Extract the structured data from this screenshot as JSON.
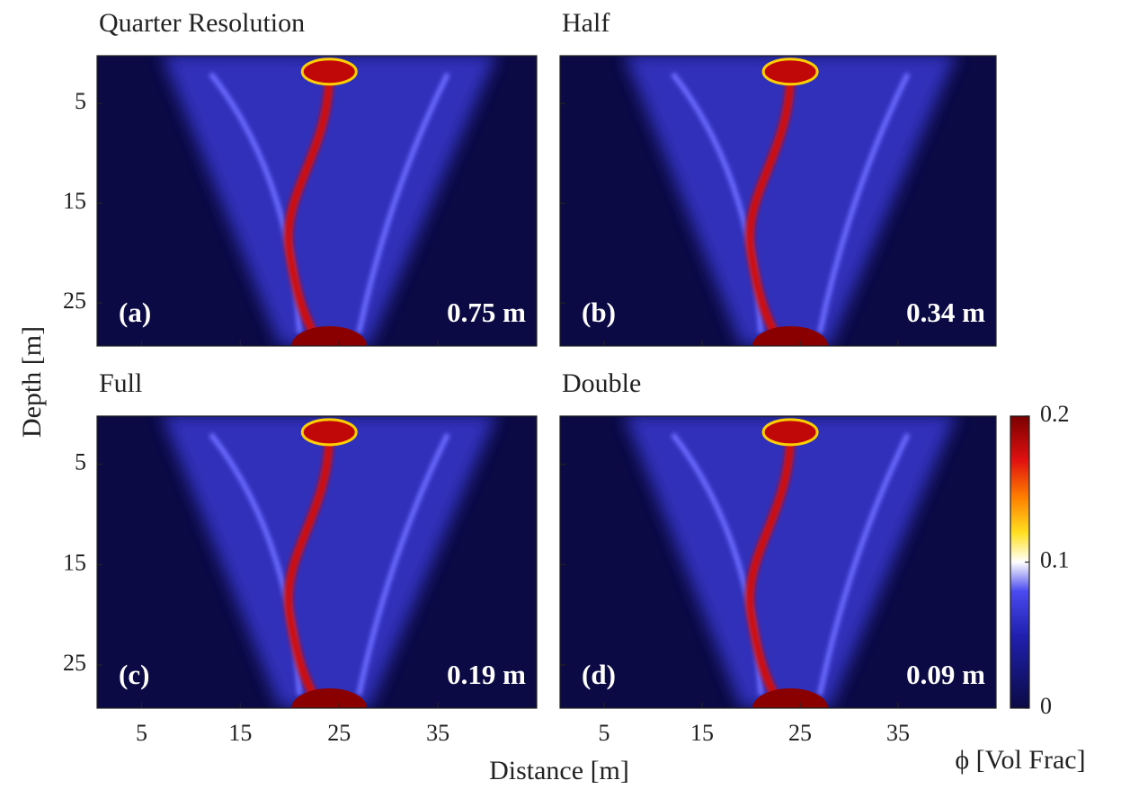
{
  "chart_data": [
    {
      "type": "heatmap",
      "title": "Quarter Resolution",
      "panel_label": "(a)",
      "annotation": "0.75 m"
    },
    {
      "type": "heatmap",
      "title": "Half",
      "panel_label": "(b)",
      "annotation": "0.34 m"
    },
    {
      "type": "heatmap",
      "title": "Full",
      "panel_label": "(c)",
      "annotation": "0.19 m"
    },
    {
      "type": "heatmap",
      "title": "Double",
      "panel_label": "(d)",
      "annotation": "0.09 m"
    }
  ],
  "axes": {
    "xlabel": "Distance [m]",
    "ylabel": "Depth [m]",
    "xlim": [
      0.5,
      45
    ],
    "xticks": [
      5,
      15,
      25,
      35
    ],
    "ylim": [
      0.2,
      29.3
    ],
    "yticks": [
      5,
      15,
      25
    ],
    "y_reversed": true
  },
  "colorbar": {
    "label": "ϕ [Vol Frac]",
    "lim": [
      0,
      0.2
    ],
    "ticks": [
      0,
      0.1,
      0.2
    ]
  }
}
